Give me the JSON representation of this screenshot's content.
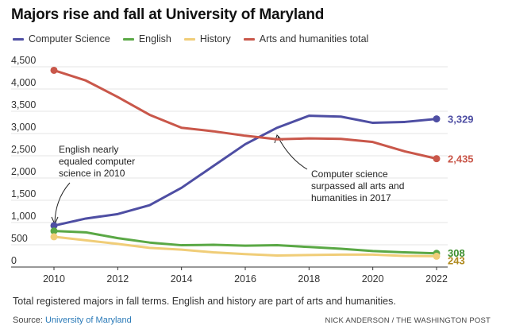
{
  "chart_data": {
    "type": "line",
    "title": "Majors rise and fall at University of Maryland",
    "xlabel": "",
    "ylabel": "",
    "x": [
      2010,
      2011,
      2012,
      2013,
      2014,
      2015,
      2016,
      2017,
      2018,
      2019,
      2020,
      2021,
      2022
    ],
    "xticks": [
      2010,
      2012,
      2014,
      2016,
      2018,
      2020,
      2022
    ],
    "xtick_labels": [
      "2010",
      "2012",
      "2014",
      "2016",
      "2018",
      "2020",
      "2022"
    ],
    "xlim": [
      2010,
      2022
    ],
    "ylim": [
      0,
      4500
    ],
    "yticks": [
      0,
      500,
      1000,
      1500,
      2000,
      2500,
      3000,
      3500,
      4000,
      4500
    ],
    "ytick_labels": [
      "0",
      "500",
      "1,000",
      "1,500",
      "2,000",
      "2,500",
      "3,000",
      "3,500",
      "4,000",
      "4,500"
    ],
    "grid": true,
    "legend_position": "top",
    "series": [
      {
        "name": "Computer Science",
        "color": "#4e4ea3",
        "values": [
          930,
          1090,
          1190,
          1390,
          1780,
          2270,
          2760,
          3130,
          3400,
          3380,
          3240,
          3260,
          3329
        ],
        "end_label": "3,329"
      },
      {
        "name": "English",
        "color": "#5aa845",
        "values": [
          810,
          780,
          650,
          550,
          490,
          500,
          480,
          490,
          450,
          410,
          360,
          330,
          308
        ],
        "end_label": "308"
      },
      {
        "name": "History",
        "color": "#f0cd78",
        "values": [
          680,
          600,
          520,
          430,
          390,
          330,
          290,
          260,
          270,
          280,
          280,
          250,
          243
        ],
        "end_label": "243"
      },
      {
        "name": "Arts and humanities total",
        "color": "#c9574a",
        "values": [
          4420,
          4190,
          3820,
          3420,
          3130,
          3050,
          2950,
          2870,
          2890,
          2880,
          2810,
          2600,
          2435
        ],
        "end_label": "2,435"
      }
    ],
    "end_label_colors": {
      "Computer Science": "#4e4ea3",
      "English": "#3c8f2e",
      "History": "#b08a1e",
      "Arts and humanities total": "#c9574a"
    },
    "annotations": [
      {
        "id": "english-2010",
        "lines": [
          "English nearly",
          "equaled computer",
          "science in 2010"
        ]
      },
      {
        "id": "cs-2017",
        "lines": [
          "Computer science",
          "surpassed all arts and",
          "humanities in 2017"
        ]
      }
    ],
    "note": "Total registered majors in fall terms. English and history are part of arts and humanities."
  },
  "source": {
    "prefix": "Source: ",
    "name": "University of Maryland"
  },
  "credit": "NICK ANDERSON / THE WASHINGTON POST"
}
